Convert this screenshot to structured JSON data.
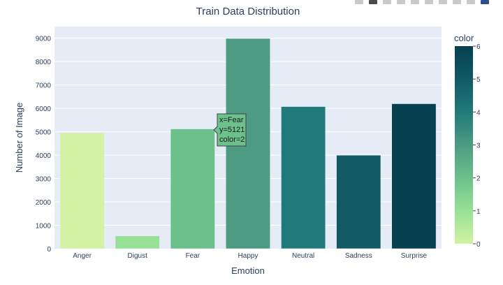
{
  "title": "Train Data Distribution",
  "modebar": {
    "icons": [
      "camera-icon",
      "zoom-icon",
      "pan-icon",
      "box-select-icon",
      "lasso-select-icon",
      "zoom-in-icon",
      "zoom-out-icon",
      "autoscale-icon",
      "reset-axes-icon",
      "plotly-logo-icon"
    ]
  },
  "tooltip": {
    "line1": "x=Fear",
    "line2": "y=5121",
    "line3": "color=2"
  },
  "chart_data": {
    "type": "bar",
    "title": "Train Data Distribution",
    "xlabel": "Emotion",
    "ylabel": "Number of Image",
    "categories": [
      "Anger",
      "Digust",
      "Fear",
      "Happy",
      "Neutral",
      "Sadness",
      "Surprise"
    ],
    "values": [
      4953,
      547,
      5121,
      8989,
      6077,
      3995,
      6198
    ],
    "color_values": [
      0,
      1,
      2,
      3,
      4,
      5,
      6
    ],
    "ylim": [
      0,
      9500
    ],
    "yticks": [
      0,
      1000,
      2000,
      3000,
      4000,
      5000,
      6000,
      7000,
      8000,
      9000
    ],
    "ytick_labels": [
      "0",
      "1000",
      "2000",
      "3000",
      "4000",
      "5000",
      "6000",
      "7000",
      "8000",
      "9000"
    ],
    "grid": true,
    "colorbar": {
      "title": "color",
      "range": [
        0,
        6
      ],
      "ticks": [
        0,
        1,
        2,
        3,
        4,
        5,
        6
      ],
      "tick_labels": [
        "0",
        "1",
        "2",
        "3",
        "4",
        "5",
        "6"
      ],
      "colorscale": [
        "#d3f2a3",
        "#97e196",
        "#6cc08b",
        "#4c9b82",
        "#217a79",
        "#105965",
        "#074050"
      ]
    },
    "plot_bg": "#e5ecf6",
    "tooltip_bg": "#6cc08b"
  }
}
